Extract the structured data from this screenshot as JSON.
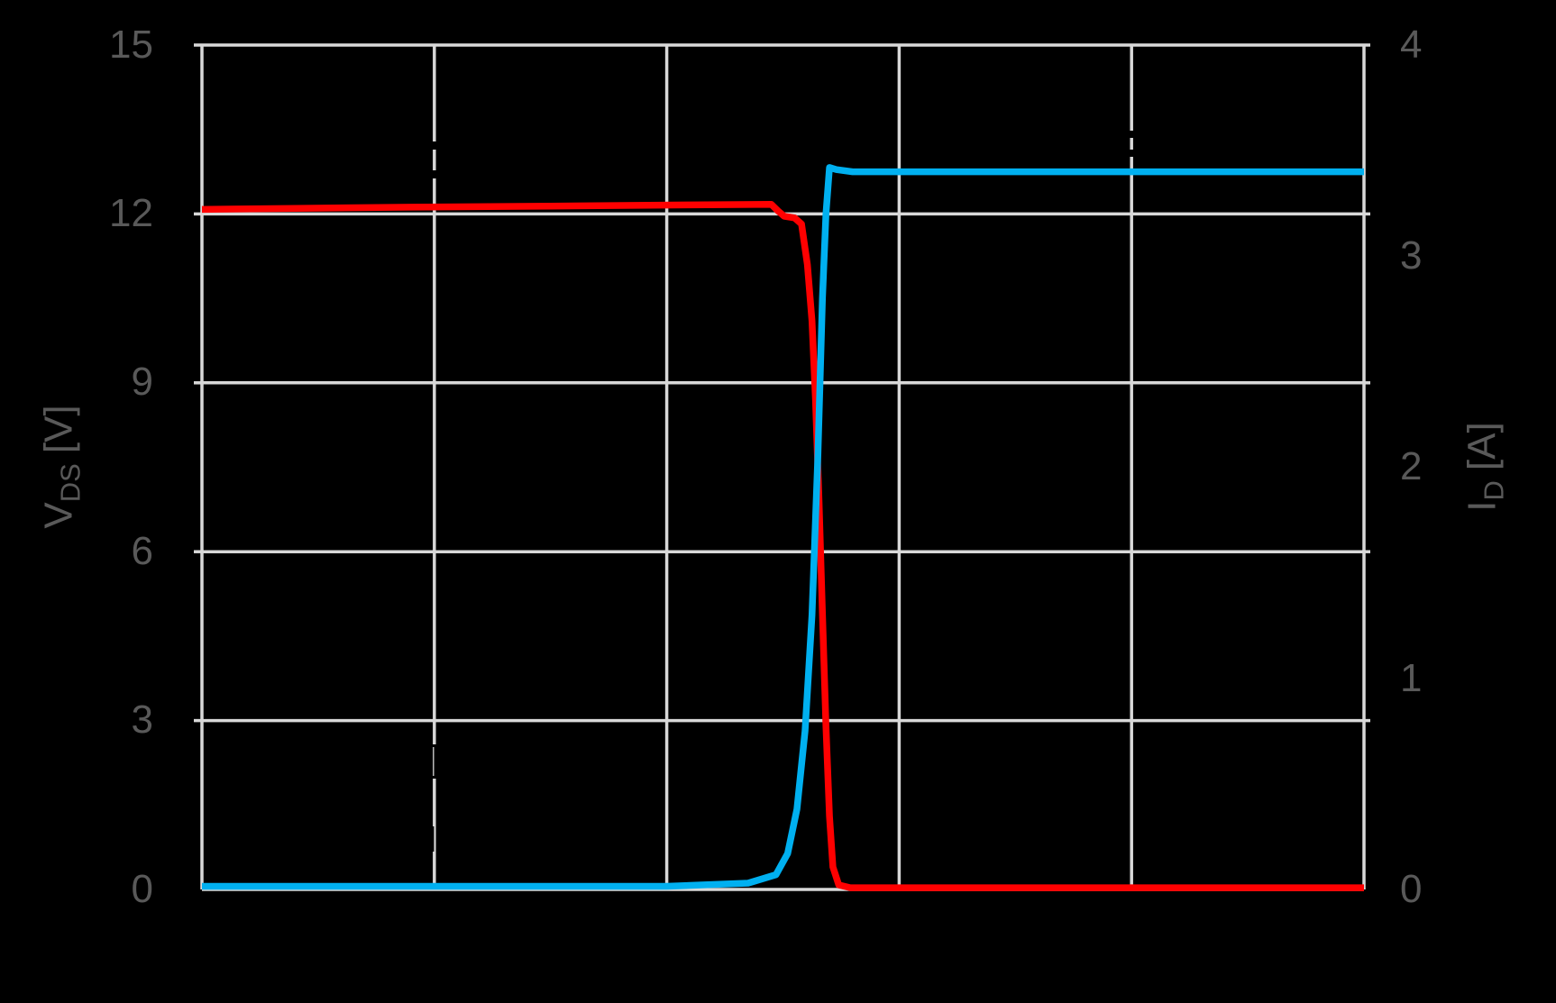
{
  "page": {
    "background": "#000000"
  },
  "colors": {
    "grid": "#D8D8D8",
    "axis_text": "#595959",
    "vds_red": "#FF0000",
    "id_blue": "#00B0F0",
    "artifact": "#000000"
  },
  "left_axis": {
    "title_symbol": "V",
    "title_subscript": "DS",
    "title_unit": "[V]",
    "ticks": [
      "15",
      "12",
      "9",
      "6",
      "3",
      "0"
    ]
  },
  "right_axis": {
    "title_symbol": "I",
    "title_subscript": "D",
    "title_unit": "[A]",
    "ticks": [
      "4",
      "3",
      "2",
      "1",
      "0"
    ]
  },
  "chart_data": {
    "type": "line",
    "title": "",
    "xlabel": "",
    "x_note": "x-axis (time) labels not visible in image; x given as percent of plot width",
    "left_y_axis": {
      "label": "V_DS [V]",
      "range": [
        0,
        15
      ],
      "tick_step": 3
    },
    "right_y_axis": {
      "label": "I_D [A]",
      "range": [
        0,
        4
      ],
      "tick_step": 1
    },
    "grid": true,
    "vertical_gridlines_percent": [
      0,
      20,
      40,
      60,
      80,
      100
    ],
    "series": [
      {
        "name": "V_DS",
        "axis": "left",
        "units": "V",
        "color": "#FF0000",
        "points": [
          [
            0,
            12.08
          ],
          [
            8,
            12.1
          ],
          [
            18,
            12.12
          ],
          [
            30,
            12.14
          ],
          [
            42,
            12.16
          ],
          [
            49.0,
            12.17
          ],
          [
            49.6,
            12.05
          ],
          [
            50.1,
            11.96
          ],
          [
            51.0,
            11.93
          ],
          [
            51.6,
            11.82
          ],
          [
            52.1,
            11.1
          ],
          [
            52.5,
            10.1
          ],
          [
            52.8,
            8.7
          ],
          [
            53.1,
            6.9
          ],
          [
            53.4,
            4.9
          ],
          [
            53.7,
            2.9
          ],
          [
            54.0,
            1.3
          ],
          [
            54.3,
            0.4
          ],
          [
            54.8,
            0.08
          ],
          [
            55.8,
            0.03
          ],
          [
            100,
            0.03
          ]
        ]
      },
      {
        "name": "I_D",
        "axis": "right",
        "units": "A",
        "color": "#00B0F0",
        "points": [
          [
            0,
            0.015
          ],
          [
            40,
            0.015
          ],
          [
            47.0,
            0.03
          ],
          [
            49.4,
            0.07
          ],
          [
            50.4,
            0.17
          ],
          [
            51.2,
            0.38
          ],
          [
            51.9,
            0.75
          ],
          [
            52.5,
            1.3
          ],
          [
            53.0,
            2.05
          ],
          [
            53.4,
            2.8
          ],
          [
            53.7,
            3.2
          ],
          [
            54.0,
            3.42
          ],
          [
            54.6,
            3.41
          ],
          [
            56,
            3.4
          ],
          [
            100,
            3.4
          ]
        ]
      }
    ]
  }
}
